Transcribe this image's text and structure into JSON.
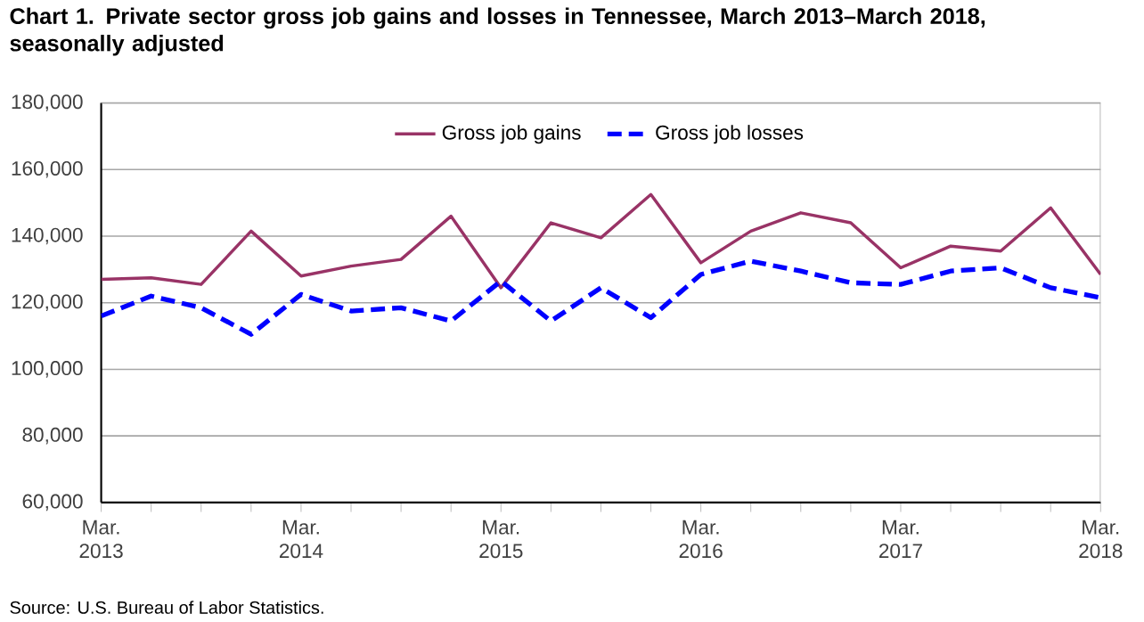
{
  "chart_data": {
    "type": "line",
    "title": "Chart 1. Private sector gross  job gains and losses  in Tennessee, March 2013–March 2018, seasonally adjusted",
    "categories": [
      "Mar. 2013",
      null,
      null,
      null,
      "Mar. 2014",
      null,
      null,
      null,
      "Mar. 2015",
      null,
      null,
      null,
      "Mar. 2016",
      null,
      null,
      null,
      "Mar. 2017",
      null,
      null,
      null,
      "Mar. 2018"
    ],
    "series": [
      {
        "name": "Gross job gains",
        "color": "#993366",
        "line_style": "solid",
        "values": [
          127000,
          127500,
          125500,
          141500,
          128000,
          131000,
          133000,
          146000,
          124500,
          144000,
          139500,
          152500,
          132000,
          141500,
          147000,
          144000,
          130500,
          137000,
          135500,
          148500,
          128500
        ]
      },
      {
        "name": "Gross job losses",
        "color": "#0000ff",
        "line_style": "dashed",
        "values": [
          116000,
          122000,
          118500,
          110500,
          122500,
          117500,
          118500,
          114500,
          126500,
          114500,
          124500,
          115500,
          128500,
          132500,
          129500,
          126000,
          125500,
          129500,
          130500,
          124500,
          121500
        ]
      }
    ],
    "ylim": [
      60000,
      180000
    ],
    "yticks": [
      {
        "value": 60000,
        "label": "60,000"
      },
      {
        "value": 80000,
        "label": "80,000"
      },
      {
        "value": 100000,
        "label": "100,000"
      },
      {
        "value": 120000,
        "label": "120,000"
      },
      {
        "value": 140000,
        "label": "140,000"
      },
      {
        "value": 160000,
        "label": "160,000"
      },
      {
        "value": 180000,
        "label": "180,000"
      }
    ],
    "grid": "y",
    "legend": "top",
    "marker": "none",
    "annotations": [
      "Source: U.S. Bureau of Labor Statistics."
    ]
  }
}
